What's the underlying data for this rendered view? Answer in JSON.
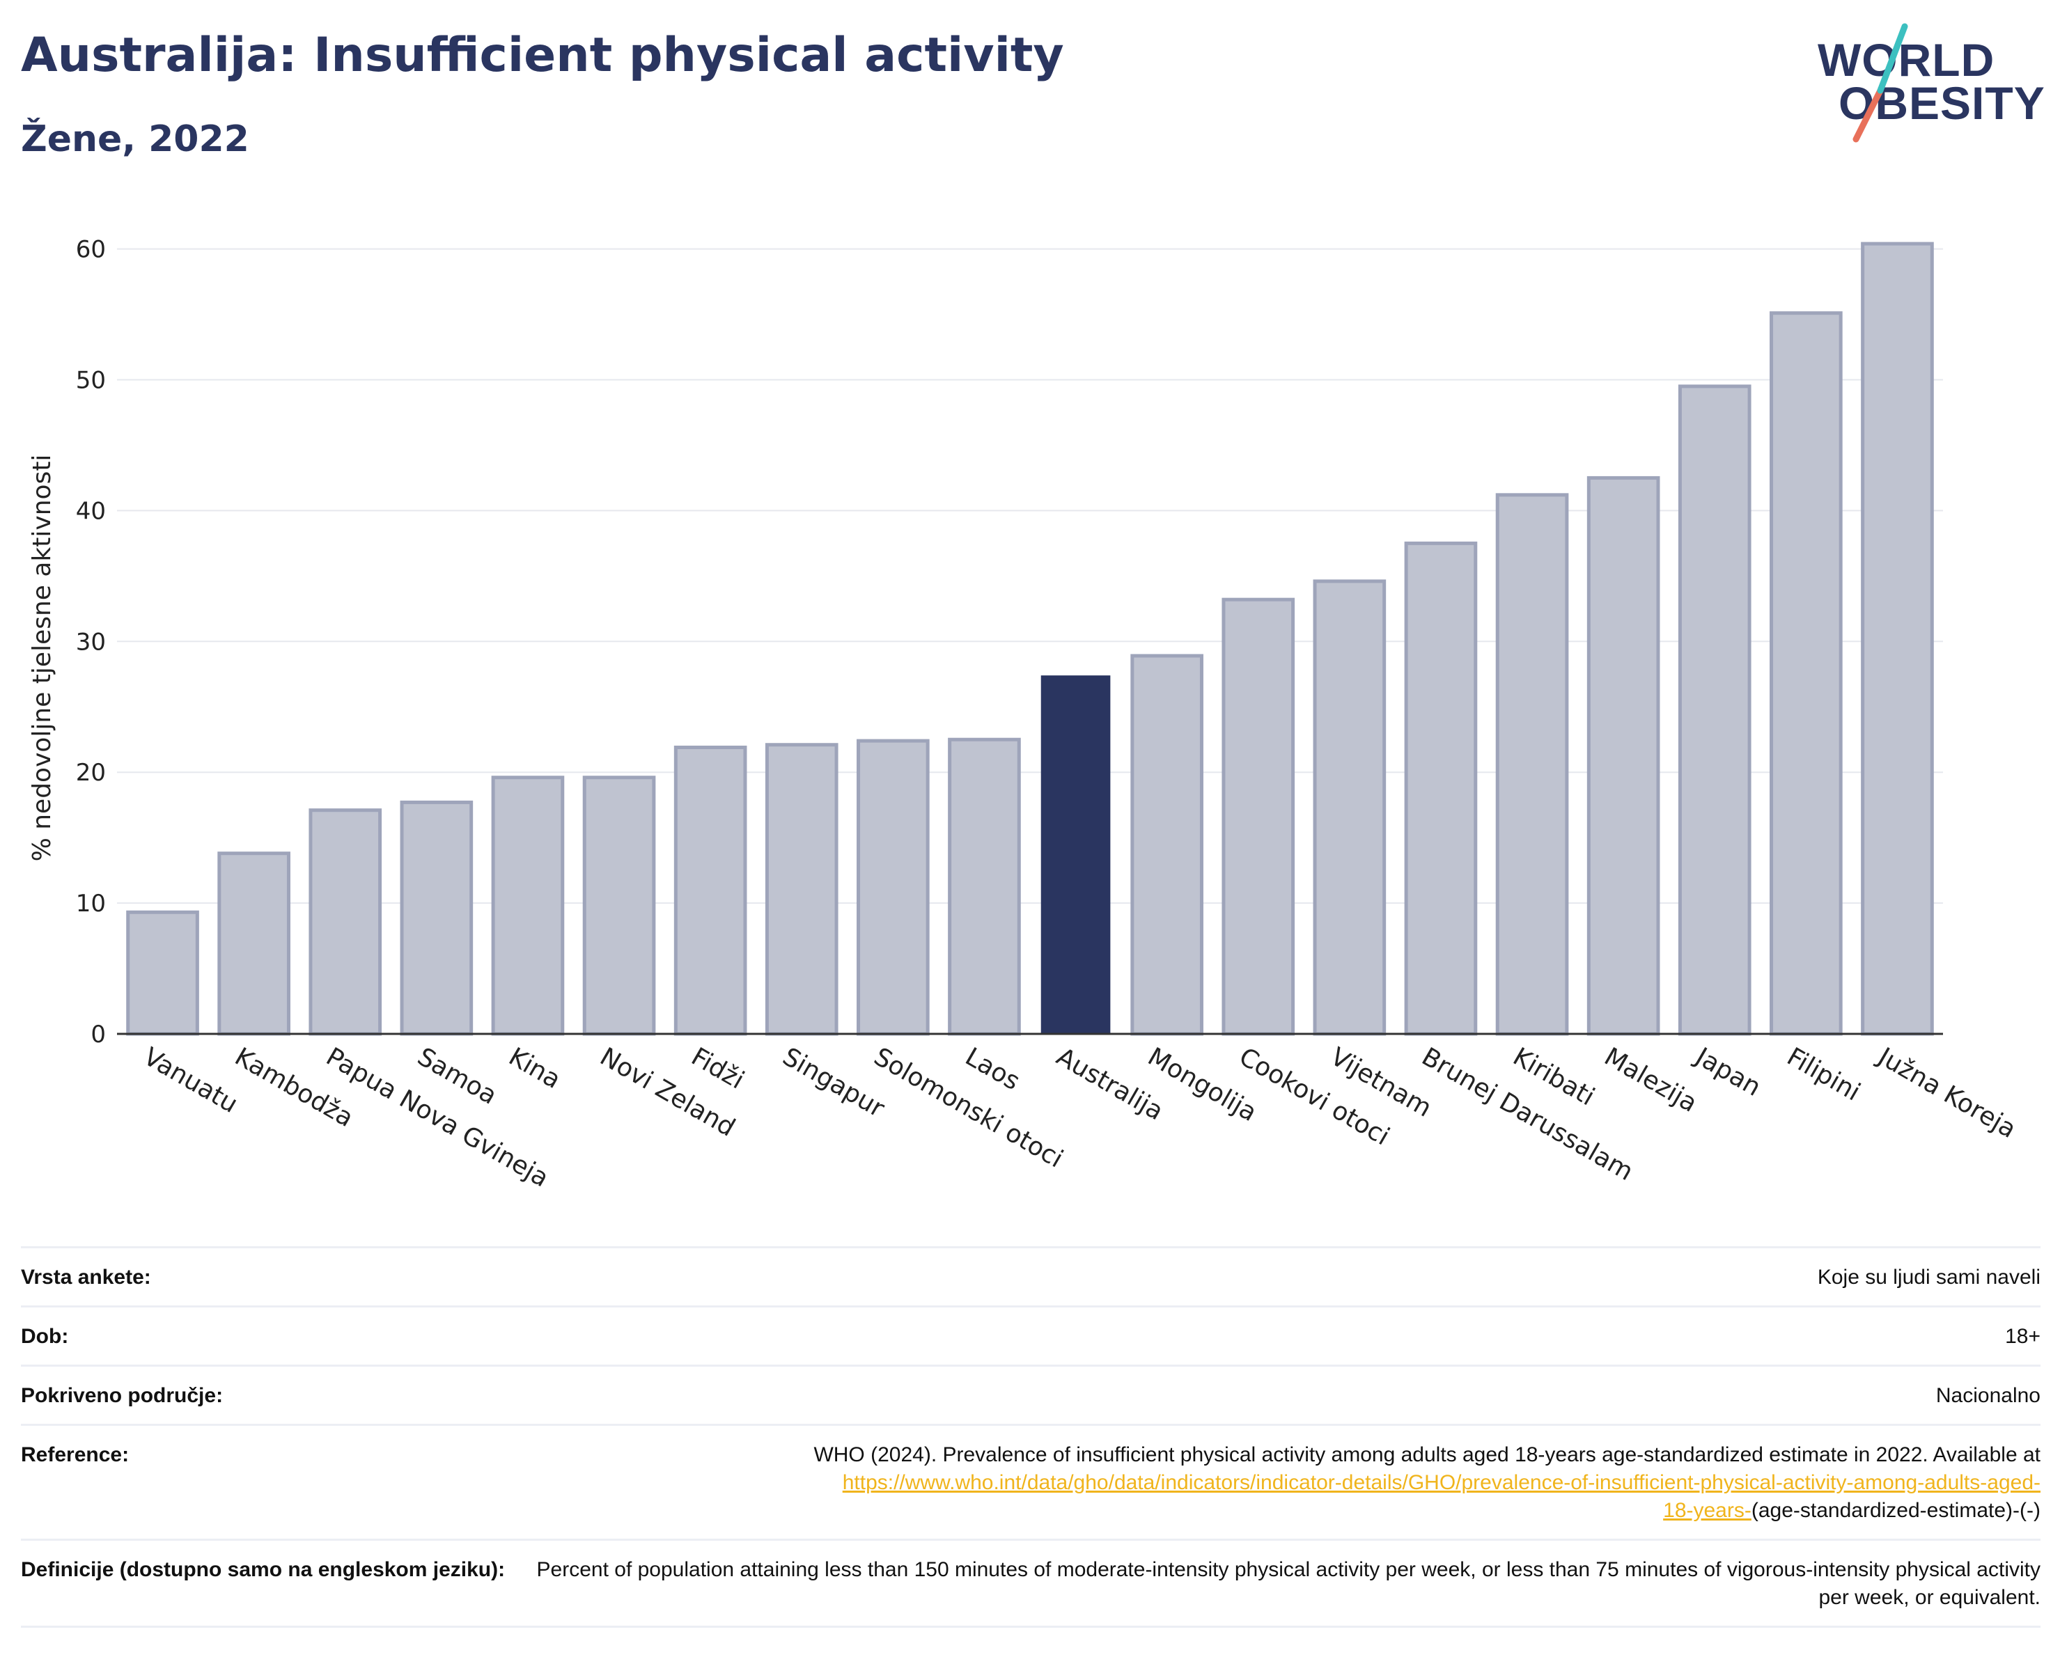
{
  "title": "Australija: Insufficient physical activity",
  "subtitle": "Žene, 2022",
  "logo": {
    "line1": "WORLD",
    "line2": "OBESITY"
  },
  "colors": {
    "highlight": "#2a3560",
    "bar_fill": "#bfc3d0",
    "bar_stroke": "#9ea4ba",
    "grid": "#e6e8ee",
    "text": "#2a3560",
    "link": "#f0b41c",
    "logo_teal": "#3cc0c0",
    "logo_coral": "#e8705a"
  },
  "chart_data": {
    "type": "bar",
    "ylabel": "% nedovoljne tjelesne aktivnosti",
    "xlabel": "",
    "ylim": [
      0,
      62
    ],
    "yticks": [
      "0",
      "10",
      "20",
      "30",
      "40",
      "50",
      "60"
    ],
    "grid": true,
    "highlight": "Australija",
    "categories": [
      "Vanuatu",
      "Kambodža",
      "Papua Nova Gvineja",
      "Samoa",
      "Kina",
      "Novi Zeland",
      "Fidži",
      "Singapur",
      "Solomonski otoci",
      "Laos",
      "Australija",
      "Mongolija",
      "Cookovi otoci",
      "Vijetnam",
      "Brunej Darussalam",
      "Kiribati",
      "Malezija",
      "Japan",
      "Filipini",
      "Južna Koreja"
    ],
    "values": [
      9.3,
      13.8,
      17.1,
      17.7,
      19.6,
      19.6,
      21.9,
      22.1,
      22.4,
      22.5,
      27.4,
      28.9,
      33.2,
      34.6,
      37.5,
      41.2,
      42.5,
      49.5,
      55.1,
      60.4
    ]
  },
  "info": {
    "survey_type": {
      "label": "Vrsta ankete:",
      "value": "Koje su ljudi sami naveli"
    },
    "age": {
      "label": "Dob:",
      "value": "18+"
    },
    "coverage": {
      "label": "Pokriveno područje:",
      "value": "Nacionalno"
    },
    "reference": {
      "label": "Reference:",
      "text": "WHO (2024). Prevalence of insufficient physical activity among adults aged 18-years age-standardized estimate in 2022. Available at",
      "link1": "https://www.who.int/data/gho/data/indicators/indicator-details/GHO/prevalence-of-insufficient-physical-activity-among-adults-aged-",
      "link2": "18-years-",
      "suffix": "(age-standardized-estimate)-(-)"
    },
    "definitions": {
      "label": "Definicije (dostupno samo na engleskom jeziku):",
      "value": "Percent of population attaining less than 150 minutes of moderate-intensity physical activity per week, or less than 75 minutes of vigorous-intensity physical activity per week, or equivalent."
    }
  }
}
